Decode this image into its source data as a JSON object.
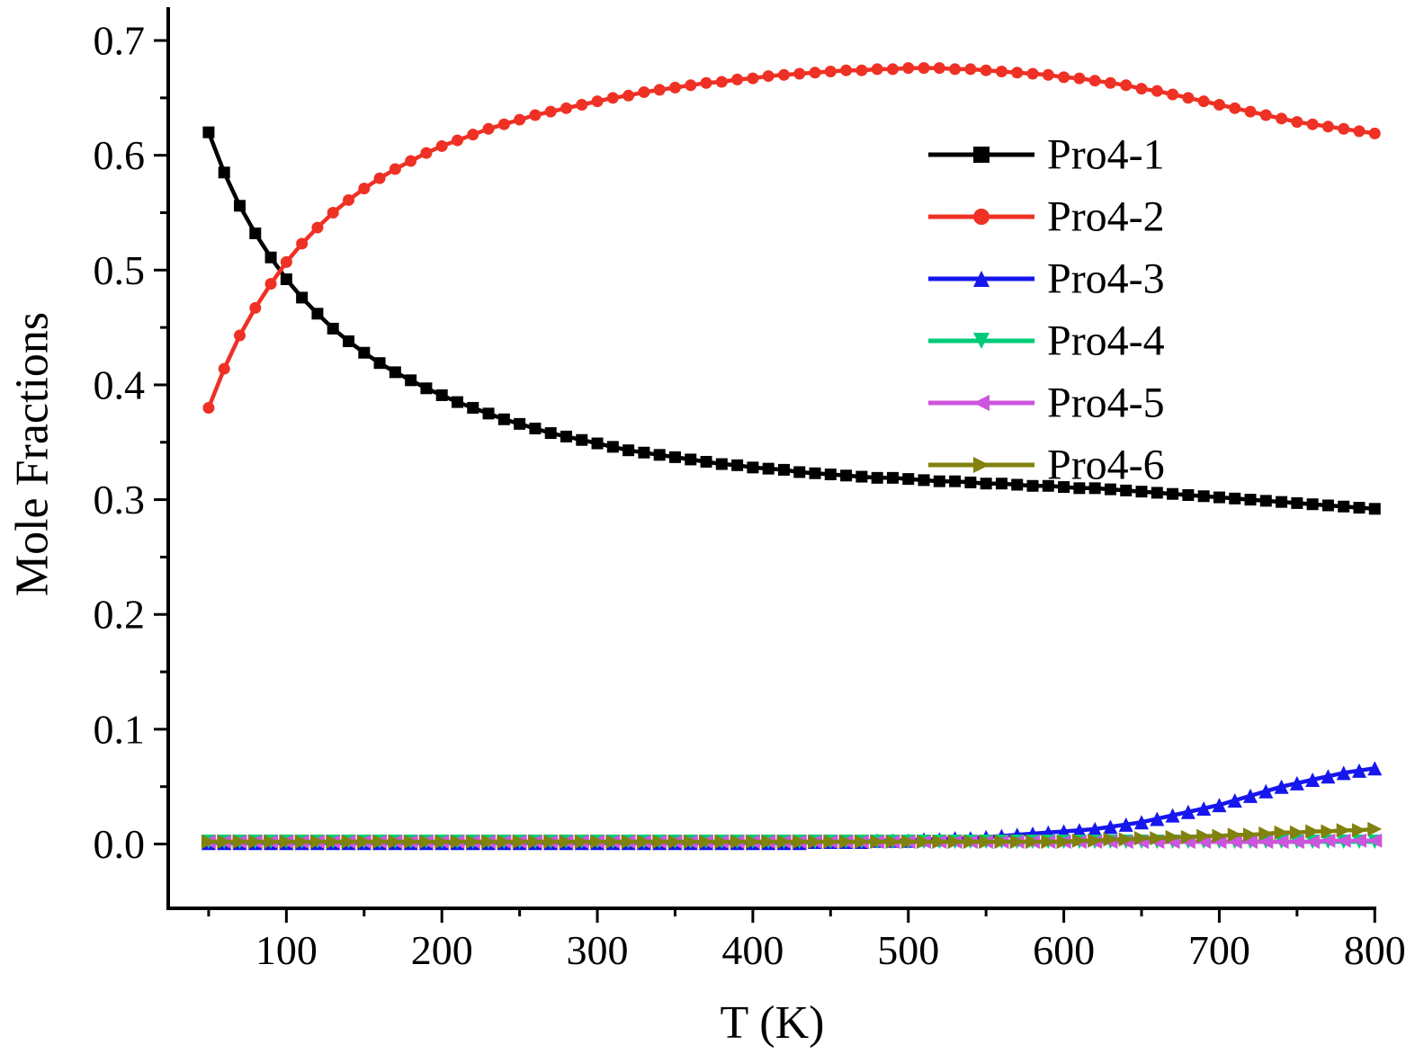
{
  "chart_data": {
    "type": "line",
    "title": "",
    "xlabel": "T (K)",
    "ylabel": "Mole Fractions",
    "xlim": [
      24,
      801
    ],
    "ylim": [
      -0.056,
      0.729
    ],
    "grid": false,
    "legend_position": "upper-right",
    "x": [
      50,
      60,
      70,
      80,
      90,
      100,
      110,
      120,
      130,
      140,
      150,
      160,
      170,
      180,
      190,
      200,
      210,
      220,
      230,
      240,
      250,
      260,
      270,
      280,
      290,
      300,
      310,
      320,
      330,
      340,
      350,
      360,
      370,
      380,
      390,
      400,
      410,
      420,
      430,
      440,
      450,
      460,
      470,
      480,
      490,
      500,
      510,
      520,
      530,
      540,
      550,
      560,
      570,
      580,
      590,
      600,
      610,
      620,
      630,
      640,
      650,
      660,
      670,
      680,
      690,
      700,
      710,
      720,
      730,
      740,
      750,
      760,
      770,
      780,
      790,
      800
    ],
    "series": [
      {
        "name": "Pro4-1",
        "color": "#000000",
        "marker": "square",
        "values": [
          0.62,
          0.585,
          0.556,
          0.532,
          0.511,
          0.492,
          0.476,
          0.462,
          0.449,
          0.438,
          0.428,
          0.419,
          0.411,
          0.404,
          0.397,
          0.391,
          0.385,
          0.38,
          0.375,
          0.37,
          0.366,
          0.362,
          0.358,
          0.355,
          0.352,
          0.349,
          0.346,
          0.343,
          0.341,
          0.339,
          0.337,
          0.335,
          0.333,
          0.331,
          0.33,
          0.328,
          0.327,
          0.326,
          0.324,
          0.323,
          0.322,
          0.321,
          0.32,
          0.319,
          0.319,
          0.318,
          0.317,
          0.316,
          0.316,
          0.315,
          0.314,
          0.314,
          0.313,
          0.312,
          0.312,
          0.311,
          0.31,
          0.31,
          0.309,
          0.308,
          0.307,
          0.306,
          0.305,
          0.304,
          0.303,
          0.302,
          0.301,
          0.3,
          0.299,
          0.298,
          0.297,
          0.296,
          0.295,
          0.294,
          0.293,
          0.292
        ]
      },
      {
        "name": "Pro4-2",
        "color": "#ee3124",
        "marker": "circle",
        "values": [
          0.38,
          0.414,
          0.443,
          0.467,
          0.488,
          0.507,
          0.523,
          0.537,
          0.55,
          0.561,
          0.571,
          0.58,
          0.588,
          0.595,
          0.602,
          0.608,
          0.613,
          0.618,
          0.623,
          0.627,
          0.631,
          0.635,
          0.638,
          0.641,
          0.644,
          0.647,
          0.65,
          0.652,
          0.655,
          0.657,
          0.659,
          0.661,
          0.663,
          0.664,
          0.666,
          0.667,
          0.669,
          0.67,
          0.671,
          0.672,
          0.673,
          0.674,
          0.674,
          0.675,
          0.675,
          0.676,
          0.676,
          0.676,
          0.675,
          0.675,
          0.674,
          0.673,
          0.672,
          0.671,
          0.67,
          0.668,
          0.667,
          0.665,
          0.663,
          0.661,
          0.658,
          0.656,
          0.653,
          0.65,
          0.647,
          0.644,
          0.641,
          0.638,
          0.635,
          0.632,
          0.629,
          0.627,
          0.625,
          0.623,
          0.621,
          0.619
        ]
      },
      {
        "name": "Pro4-3",
        "color": "#1616ee",
        "marker": "triangle-up",
        "values": [
          0.001,
          0.001,
          0.001,
          0.001,
          0.001,
          0.001,
          0.001,
          0.001,
          0.001,
          0.001,
          0.001,
          0.001,
          0.001,
          0.001,
          0.001,
          0.001,
          0.001,
          0.001,
          0.001,
          0.001,
          0.001,
          0.001,
          0.001,
          0.001,
          0.001,
          0.001,
          0.001,
          0.001,
          0.001,
          0.001,
          0.001,
          0.001,
          0.001,
          0.001,
          0.001,
          0.001,
          0.001,
          0.001,
          0.001,
          0.002,
          0.002,
          0.002,
          0.002,
          0.003,
          0.003,
          0.003,
          0.004,
          0.004,
          0.005,
          0.005,
          0.006,
          0.007,
          0.008,
          0.009,
          0.01,
          0.011,
          0.012,
          0.013,
          0.015,
          0.017,
          0.019,
          0.022,
          0.025,
          0.028,
          0.031,
          0.034,
          0.038,
          0.042,
          0.046,
          0.05,
          0.053,
          0.056,
          0.059,
          0.062,
          0.064,
          0.066
        ]
      },
      {
        "name": "Pro4-4",
        "color": "#00cc77",
        "marker": "triangle-down",
        "values": [
          0.002,
          0.002,
          0.002,
          0.002,
          0.002,
          0.002,
          0.002,
          0.002,
          0.002,
          0.002,
          0.002,
          0.002,
          0.002,
          0.002,
          0.002,
          0.002,
          0.002,
          0.002,
          0.002,
          0.002,
          0.002,
          0.002,
          0.002,
          0.002,
          0.002,
          0.002,
          0.002,
          0.002,
          0.002,
          0.002,
          0.002,
          0.002,
          0.002,
          0.002,
          0.002,
          0.002,
          0.002,
          0.002,
          0.002,
          0.002,
          0.002,
          0.002,
          0.002,
          0.002,
          0.002,
          0.002,
          0.002,
          0.002,
          0.002,
          0.002,
          0.002,
          0.002,
          0.002,
          0.002,
          0.002,
          0.002,
          0.002,
          0.002,
          0.002,
          0.002,
          0.002,
          0.002,
          0.002,
          0.002,
          0.002,
          0.002,
          0.002,
          0.002,
          0.002,
          0.002,
          0.002,
          0.002,
          0.002,
          0.002,
          0.002,
          0.002
        ]
      },
      {
        "name": "Pro4-5",
        "color": "#cc55dd",
        "marker": "triangle-left",
        "values": [
          0.002,
          0.002,
          0.002,
          0.002,
          0.002,
          0.002,
          0.002,
          0.002,
          0.002,
          0.002,
          0.002,
          0.002,
          0.002,
          0.002,
          0.002,
          0.002,
          0.002,
          0.002,
          0.002,
          0.002,
          0.002,
          0.002,
          0.002,
          0.002,
          0.002,
          0.002,
          0.002,
          0.002,
          0.002,
          0.002,
          0.002,
          0.002,
          0.002,
          0.002,
          0.002,
          0.002,
          0.002,
          0.002,
          0.002,
          0.002,
          0.002,
          0.002,
          0.002,
          0.002,
          0.002,
          0.002,
          0.002,
          0.002,
          0.002,
          0.002,
          0.002,
          0.002,
          0.002,
          0.002,
          0.002,
          0.002,
          0.002,
          0.002,
          0.002,
          0.002,
          0.002,
          0.002,
          0.002,
          0.002,
          0.002,
          0.002,
          0.002,
          0.002,
          0.002,
          0.002,
          0.002,
          0.002,
          0.003,
          0.003,
          0.003,
          0.003
        ]
      },
      {
        "name": "Pro4-6",
        "color": "#81810e",
        "marker": "triangle-right",
        "values": [
          0.002,
          0.002,
          0.002,
          0.002,
          0.002,
          0.002,
          0.002,
          0.002,
          0.002,
          0.002,
          0.002,
          0.002,
          0.002,
          0.002,
          0.002,
          0.002,
          0.002,
          0.002,
          0.002,
          0.002,
          0.002,
          0.002,
          0.002,
          0.002,
          0.002,
          0.002,
          0.002,
          0.002,
          0.002,
          0.002,
          0.002,
          0.002,
          0.002,
          0.002,
          0.002,
          0.002,
          0.002,
          0.002,
          0.002,
          0.002,
          0.002,
          0.002,
          0.002,
          0.002,
          0.002,
          0.002,
          0.002,
          0.002,
          0.002,
          0.002,
          0.002,
          0.002,
          0.002,
          0.002,
          0.002,
          0.002,
          0.003,
          0.003,
          0.004,
          0.004,
          0.005,
          0.005,
          0.006,
          0.006,
          0.007,
          0.007,
          0.008,
          0.008,
          0.009,
          0.01,
          0.01,
          0.011,
          0.011,
          0.012,
          0.012,
          0.013
        ]
      }
    ],
    "axes": {
      "x": {
        "major": [
          100,
          200,
          300,
          400,
          500,
          600,
          700,
          800
        ],
        "labels": [
          "100",
          "200",
          "300",
          "400",
          "500",
          "600",
          "700",
          "800"
        ],
        "minor": [
          50,
          150,
          250,
          350,
          450,
          550,
          650,
          750
        ]
      },
      "y": {
        "major": [
          0.0,
          0.1,
          0.2,
          0.3,
          0.4,
          0.5,
          0.6,
          0.7
        ],
        "labels": [
          "0.0",
          "0.1",
          "0.2",
          "0.3",
          "0.4",
          "0.5",
          "0.6",
          "0.7"
        ],
        "minor": [
          0.05,
          0.15,
          0.25,
          0.35,
          0.45,
          0.55,
          0.65
        ]
      }
    }
  }
}
